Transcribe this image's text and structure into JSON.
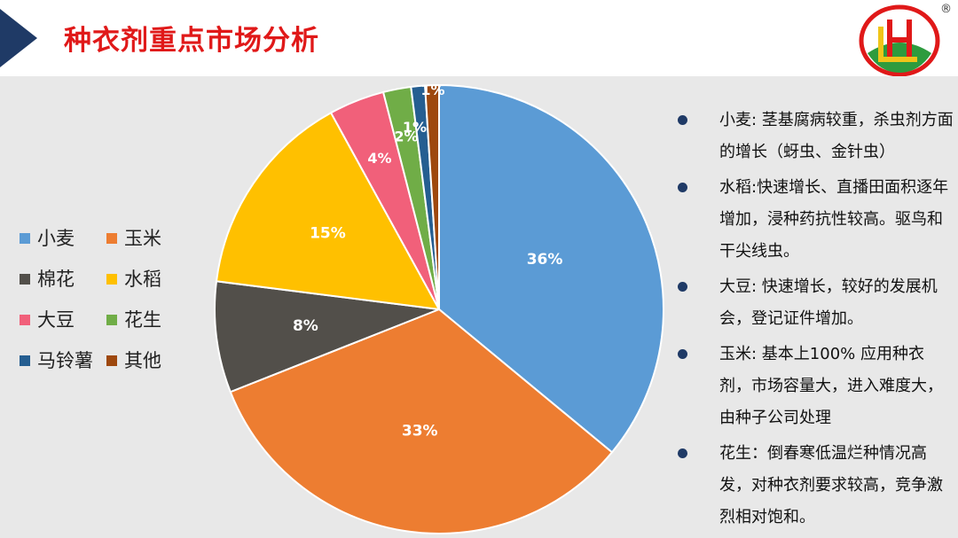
{
  "header": {
    "title": "种衣剂重点市场分析",
    "accent_color": "#e01919",
    "arrow_color": "#1f3a66",
    "logo_icon": "hd-company-logo",
    "logo_mark": "®"
  },
  "chart_data": {
    "type": "pie",
    "title": "",
    "categories": [
      "小麦",
      "玉米",
      "棉花",
      "水稻",
      "大豆",
      "花生",
      "马铃薯",
      "其他"
    ],
    "values": [
      36,
      33,
      8,
      15,
      4,
      2,
      1,
      1
    ],
    "labels": [
      "36%",
      "33%",
      "8%",
      "15%",
      "4%",
      "2%",
      "1%",
      "1%"
    ],
    "colors": [
      "#5b9bd5",
      "#ed7d31",
      "#524f4a",
      "#ffc000",
      "#f1607a",
      "#70ad47",
      "#255e91",
      "#9e480e"
    ],
    "legend_position": "left"
  },
  "notes": [
    "小麦: 茎基腐病较重，杀虫剂方面的增长（蚜虫、金针虫）",
    "水稻:快速增长、直播田面积逐年增加，浸种药抗性较高。驱鸟和干尖线虫。",
    "大豆: 快速增长，较好的发展机会，登记证件增加。",
    "玉米: 基本上100% 应用种衣剂，市场容量大，进入难度大，由种子公司处理",
    "花生：倒春寒低温烂种情况高发，对种衣剂要求较高，竞争激烈相对饱和。"
  ]
}
